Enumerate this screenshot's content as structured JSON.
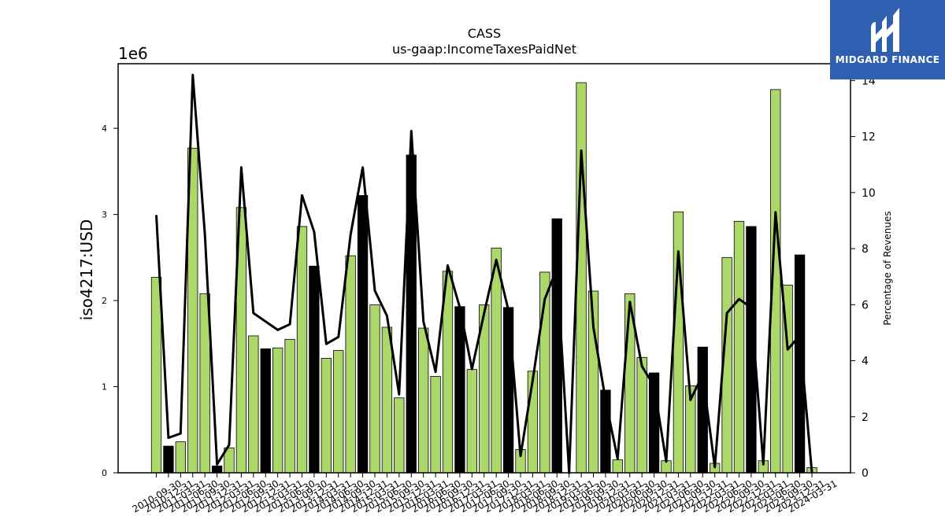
{
  "chart_data": {
    "type": "bar",
    "title": "CASS",
    "subtitle": "us-gaap:IncomeTaxesPaidNet",
    "ylabel": "iso4217:USD",
    "y_offset_label": "1e6",
    "y2label": "Percentage of Revenues",
    "ylim": [
      0,
      4750000
    ],
    "y2lim": [
      0,
      14.6
    ],
    "yticks": [
      "0",
      "1",
      "2",
      "3",
      "4"
    ],
    "y2ticks": [
      "0",
      "2",
      "4",
      "6",
      "8",
      "10",
      "12",
      "14"
    ],
    "grid": false,
    "legend": "none",
    "colors": {
      "quarterly": "#acd86a",
      "annual": "#000000",
      "line": "#000000"
    },
    "categories": [
      "2010-09-30",
      "2010-12-31",
      "2011-03-31",
      "2011-06-30",
      "2011-09-30",
      "2011-12-31",
      "2012-03-31",
      "2012-06-30",
      "2012-09-30",
      "2012-12-31",
      "2013-03-31",
      "2013-06-30",
      "2013-09-30",
      "2013-12-31",
      "2014-03-31",
      "2014-06-30",
      "2014-09-30",
      "2014-12-31",
      "2015-03-31",
      "2015-06-30",
      "2015-09-30",
      "2015-12-31",
      "2016-03-31",
      "2016-06-30",
      "2016-09-30",
      "2016-12-31",
      "2017-03-31",
      "2017-06-30",
      "2017-09-30",
      "2017-12-31",
      "2018-03-31",
      "2018-06-30",
      "2018-09-30",
      "2018-12-31",
      "2019-03-31",
      "2019-06-30",
      "2019-09-30",
      "2019-12-31",
      "2020-03-31",
      "2020-06-30",
      "2020-09-30",
      "2020-12-31",
      "2021-03-31",
      "2021-06-30",
      "2021-09-30",
      "2021-12-31",
      "2022-03-31",
      "2022-06-30",
      "2022-09-30",
      "2022-12-31",
      "2023-03-31",
      "2023-06-30",
      "2023-09-30",
      "2023-12-31",
      "2024-03-31"
    ],
    "series": [
      {
        "kind": "bar",
        "values": [
          2270000,
          310000,
          360000,
          3770000,
          2080000,
          80000,
          290000,
          3080000,
          1590000,
          1440000,
          1450000,
          1550000,
          2860000,
          2400000,
          1330000,
          1420000,
          2520000,
          3220000,
          1950000,
          1690000,
          870000,
          3690000,
          1680000,
          1120000,
          2340000,
          1930000,
          1200000,
          1950000,
          2610000,
          1920000,
          270000,
          1180000,
          2330000,
          2950000,
          0,
          4530000,
          2110000,
          960000,
          150000,
          2080000,
          1340000,
          1160000,
          140000,
          3030000,
          1010000,
          1460000,
          110000,
          2500000,
          2920000,
          2860000,
          140000,
          4450000,
          2180000,
          2530000,
          60000
        ],
        "annual": [
          false,
          true,
          false,
          false,
          false,
          true,
          false,
          false,
          false,
          true,
          false,
          false,
          false,
          true,
          false,
          false,
          false,
          true,
          false,
          false,
          false,
          true,
          false,
          false,
          false,
          true,
          false,
          false,
          false,
          true,
          false,
          false,
          false,
          true,
          false,
          false,
          false,
          true,
          false,
          false,
          false,
          true,
          false,
          false,
          false,
          true,
          false,
          false,
          false,
          true,
          false,
          false,
          false,
          true,
          false
        ]
      },
      {
        "kind": "line",
        "axis": "right",
        "values": [
          9.2,
          1.25,
          1.4,
          14.2,
          8.5,
          0.3,
          1.0,
          10.9,
          5.7,
          5.4,
          5.1,
          5.3,
          9.9,
          8.6,
          4.6,
          4.85,
          8.5,
          10.9,
          6.5,
          5.6,
          2.8,
          12.2,
          5.4,
          3.6,
          7.4,
          5.9,
          3.7,
          5.7,
          7.6,
          5.8,
          0.6,
          3.3,
          6.2,
          7.3,
          0,
          11.5,
          5.2,
          2.6,
          0.5,
          6.1,
          3.8,
          3.1,
          0.4,
          7.9,
          2.6,
          3.5,
          0.2,
          5.7,
          6.2,
          5.9,
          0.3,
          9.3,
          4.4,
          4.9,
          0
        ]
      }
    ]
  },
  "logo": {
    "text": "MIDGARD FINANCE"
  }
}
